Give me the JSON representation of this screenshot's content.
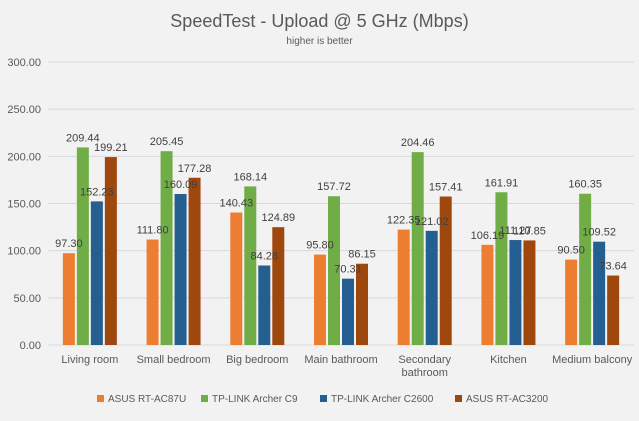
{
  "chart_data": {
    "type": "bar",
    "title": "SpeedTest - Upload @ 5 GHz (Mbps)",
    "subtitle": "higher is better",
    "categories": [
      "Living room",
      "Small bedroom",
      "Big bedroom",
      "Main bathroom",
      [
        "Secondary",
        "bathroom"
      ],
      "Kitchen",
      "Medium balcony"
    ],
    "series": [
      {
        "name": "ASUS RT-AC87U",
        "color": "#ed7d31",
        "values": [
          97.3,
          111.8,
          140.43,
          95.8,
          122.35,
          106.19,
          90.5
        ]
      },
      {
        "name": "TP-LINK Archer C9",
        "color": "#70ad47",
        "values": [
          209.44,
          205.45,
          168.14,
          157.72,
          204.46,
          161.91,
          160.35
        ]
      },
      {
        "name": "TP-LINK Archer C2600",
        "color": "#255e91",
        "values": [
          152.23,
          160.09,
          84.28,
          70.31,
          121.02,
          111.27,
          109.52
        ]
      },
      {
        "name": "ASUS RT-AC3200",
        "color": "#9e480e",
        "values": [
          199.21,
          177.28,
          124.89,
          86.15,
          157.41,
          110.85,
          73.64
        ]
      }
    ],
    "ylim": [
      0,
      300
    ],
    "yticks": [
      "0.00",
      "50.00",
      "100.00",
      "150.00",
      "200.00",
      "250.00",
      "300.00"
    ],
    "grid": true,
    "legend_position": "bottom"
  }
}
